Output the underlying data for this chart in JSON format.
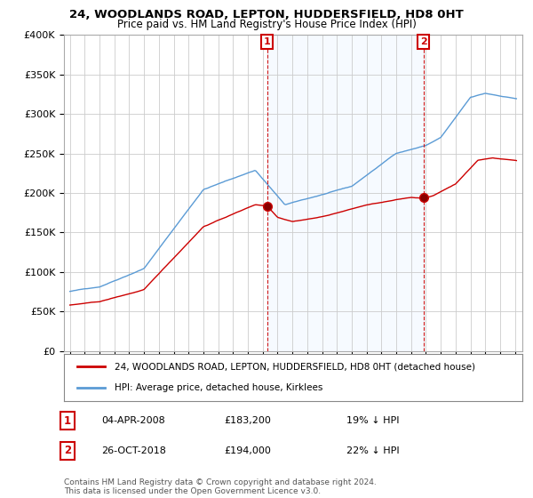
{
  "title1": "24, WOODLANDS ROAD, LEPTON, HUDDERSFIELD, HD8 0HT",
  "title2": "Price paid vs. HM Land Registry's House Price Index (HPI)",
  "ylim": [
    0,
    400000
  ],
  "yticks": [
    0,
    50000,
    100000,
    150000,
    200000,
    250000,
    300000,
    350000,
    400000
  ],
  "ytick_labels": [
    "£0",
    "£50K",
    "£100K",
    "£150K",
    "£200K",
    "£250K",
    "£300K",
    "£350K",
    "£400K"
  ],
  "red_color": "#cc0000",
  "blue_color": "#5b9bd5",
  "shade_color": "#ddeeff",
  "marker1_date_str": "04-APR-2008",
  "marker1_price": 183200,
  "marker1_pct": "19% ↓ HPI",
  "marker2_date_str": "26-OCT-2018",
  "marker2_price": 194000,
  "marker2_pct": "22% ↓ HPI",
  "legend_line1": "24, WOODLANDS ROAD, LEPTON, HUDDERSFIELD, HD8 0HT (detached house)",
  "legend_line2": "HPI: Average price, detached house, Kirklees",
  "footnote": "Contains HM Land Registry data © Crown copyright and database right 2024.\nThis data is licensed under the Open Government Licence v3.0.",
  "background_color": "#ffffff",
  "grid_color": "#cccccc",
  "sale1_x": 2008.292,
  "sale1_y": 183200,
  "sale2_x": 2018.832,
  "sale2_y": 194000,
  "years_start": 1995.0,
  "years_end": 2025.1,
  "xlim_left": 1994.6,
  "xlim_right": 2025.5
}
